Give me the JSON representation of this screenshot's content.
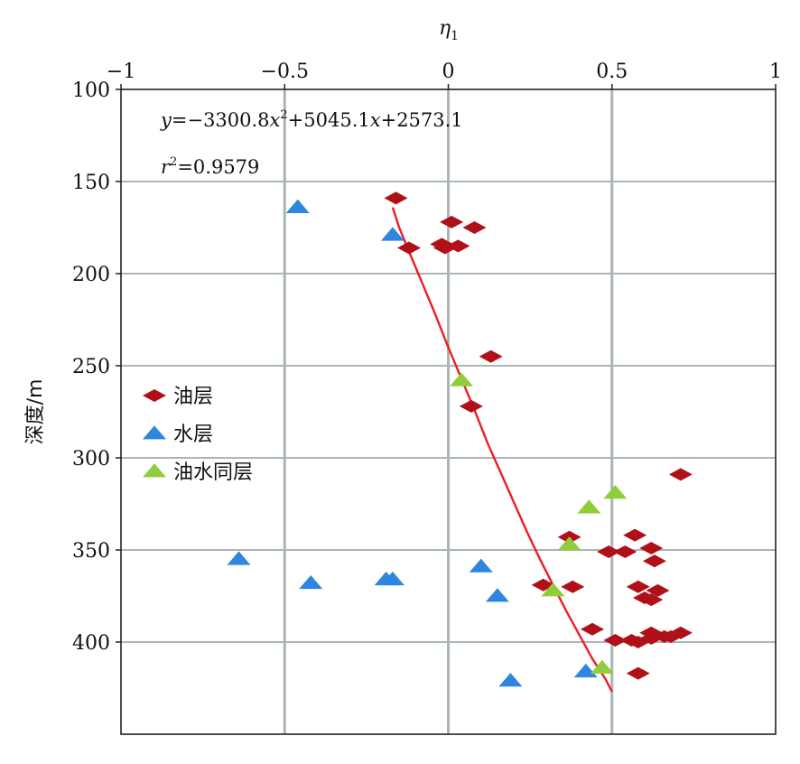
{
  "chart_data": {
    "type": "scatter",
    "title": "",
    "xlabel": "η",
    "xlabel_sub": "1",
    "ylabel": "深度/m",
    "x_axis_position": "top",
    "y_inverted": true,
    "xlim": [
      -1,
      1
    ],
    "ylim": [
      100,
      450
    ],
    "x_ticks": [
      -1,
      -0.5,
      0,
      0.5,
      1
    ],
    "x_tick_labels": [
      "−1",
      "−0.5",
      "0",
      "0.5",
      "1"
    ],
    "y_ticks": [
      100,
      150,
      200,
      250,
      300,
      350,
      400
    ],
    "y_tick_labels": [
      "100",
      "150",
      "200",
      "250",
      "300",
      "350",
      "400"
    ],
    "grid": true,
    "legend_position": "left-middle",
    "annotation_equation": {
      "y": "y",
      "eq_a": "=−3300.8",
      "x1": "x",
      "sq": "2",
      "eq_b": "+5045.1",
      "x2": "x",
      "eq_c": "+2573.1"
    },
    "annotation_r2": {
      "r": "r",
      "sq": "2",
      "val": "=0.9579"
    },
    "series": [
      {
        "name": "油层",
        "marker": "diamond",
        "color": "#b01018",
        "points": [
          [
            -0.16,
            159
          ],
          [
            0.01,
            172
          ],
          [
            0.08,
            175
          ],
          [
            -0.02,
            184
          ],
          [
            -0.01,
            186
          ],
          [
            0.03,
            185
          ],
          [
            -0.12,
            186
          ],
          [
            0.13,
            245
          ],
          [
            0.07,
            272
          ],
          [
            0.71,
            309
          ],
          [
            0.37,
            343
          ],
          [
            0.57,
            342
          ],
          [
            0.49,
            351
          ],
          [
            0.54,
            351
          ],
          [
            0.62,
            349
          ],
          [
            0.63,
            356
          ],
          [
            0.29,
            369
          ],
          [
            0.38,
            370
          ],
          [
            0.58,
            370
          ],
          [
            0.64,
            372
          ],
          [
            0.6,
            376
          ],
          [
            0.62,
            377
          ],
          [
            0.44,
            393
          ],
          [
            0.51,
            399
          ],
          [
            0.56,
            399
          ],
          [
            0.58,
            400
          ],
          [
            0.62,
            398
          ],
          [
            0.62,
            395
          ],
          [
            0.66,
            397
          ],
          [
            0.68,
            397
          ],
          [
            0.71,
            395
          ],
          [
            0.58,
            417
          ]
        ]
      },
      {
        "name": "水层",
        "marker": "triangle",
        "color": "#2e86de",
        "points": [
          [
            -0.46,
            164
          ],
          [
            -0.17,
            179
          ],
          [
            -0.64,
            355
          ],
          [
            -0.42,
            368
          ],
          [
            -0.19,
            366
          ],
          [
            -0.17,
            366
          ],
          [
            0.1,
            359
          ],
          [
            0.15,
            375
          ],
          [
            0.19,
            421
          ],
          [
            0.42,
            416
          ]
        ]
      },
      {
        "name": "油水同层",
        "marker": "triangle",
        "color": "#8fce3a",
        "points": [
          [
            0.04,
            258
          ],
          [
            0.51,
            319
          ],
          [
            0.43,
            327
          ],
          [
            0.37,
            347
          ],
          [
            0.32,
            372
          ],
          [
            0.47,
            414
          ]
        ]
      }
    ],
    "fit_curve": {
      "color": "#ee1c25",
      "x_range": [
        -0.17,
        0.5
      ],
      "points": [
        [
          -0.17,
          164
        ],
        [
          -0.15,
          175
        ],
        [
          -0.12,
          188
        ],
        [
          -0.08,
          205
        ],
        [
          -0.04,
          222
        ],
        [
          0.0,
          240
        ],
        [
          0.04,
          257
        ],
        [
          0.08,
          274
        ],
        [
          0.12,
          292
        ],
        [
          0.16,
          308
        ],
        [
          0.2,
          324
        ],
        [
          0.24,
          340
        ],
        [
          0.28,
          355
        ],
        [
          0.32,
          369
        ],
        [
          0.36,
          383
        ],
        [
          0.4,
          396
        ],
        [
          0.44,
          409
        ],
        [
          0.48,
          420
        ],
        [
          0.5,
          427
        ]
      ]
    }
  }
}
